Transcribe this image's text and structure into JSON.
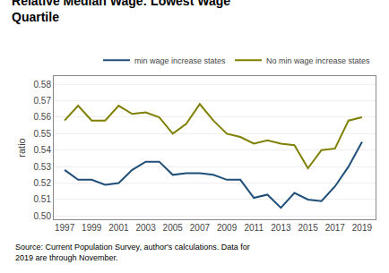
{
  "chart_data": {
    "type": "line",
    "title": "Relative Median Wage: Lowest Wage\nQuartile",
    "ylabel": "ratio",
    "annotations": [
      "Source: Current Population Survey, author's calculations. Data for\n2019 are through November."
    ],
    "x": [
      1997,
      1998,
      1999,
      2000,
      2001,
      2002,
      2003,
      2004,
      2005,
      2006,
      2007,
      2008,
      2009,
      2010,
      2011,
      2012,
      2013,
      2014,
      2015,
      2016,
      2017,
      2018,
      2019
    ],
    "series": [
      {
        "name": "min wage increase states",
        "color": "#1f4e79",
        "values": [
          0.528,
          0.522,
          0.522,
          0.519,
          0.52,
          0.528,
          0.533,
          0.533,
          0.525,
          0.526,
          0.526,
          0.525,
          0.522,
          0.522,
          0.511,
          0.513,
          0.505,
          0.514,
          0.51,
          0.509,
          0.518,
          0.53,
          0.545
        ]
      },
      {
        "name": "No min wage increase states",
        "color": "#7f7f00",
        "values": [
          0.558,
          0.567,
          0.558,
          0.558,
          0.567,
          0.562,
          0.563,
          0.56,
          0.55,
          0.556,
          0.568,
          0.558,
          0.55,
          0.548,
          0.544,
          0.546,
          0.544,
          0.543,
          0.529,
          0.54,
          0.541,
          0.558,
          0.56
        ]
      }
    ],
    "xlim": [
      1996.2,
      2020.0
    ],
    "xticks": [
      1997,
      1999,
      2001,
      2003,
      2005,
      2007,
      2009,
      2011,
      2013,
      2015,
      2017,
      2019
    ],
    "ylim": [
      0.498,
      0.585
    ],
    "yticks": [
      {
        "value": 0.5,
        "label": "0.50"
      },
      0.51,
      0.52,
      0.53,
      0.54,
      0.55,
      0.56,
      0.57,
      0.58
    ],
    "grid": "y",
    "legend": "upper right"
  }
}
